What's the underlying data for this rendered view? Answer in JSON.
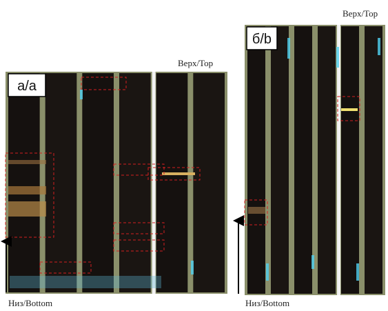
{
  "panel_a": {
    "label": "а/a",
    "top": "Верх/Top",
    "bottom": "Низ/Bottom"
  },
  "panel_b": {
    "label": "б/b",
    "top": "Верх/Top",
    "bottom": "Низ/Bottom"
  }
}
